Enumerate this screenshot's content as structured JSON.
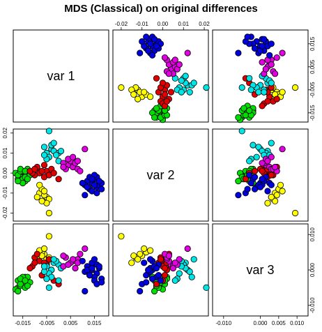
{
  "chart_data": {
    "type": "scatter",
    "subtype": "scatterplot-matrix",
    "title": "MDS (Classical) on original differences",
    "variables": [
      "var 1",
      "var 2",
      "var 3"
    ],
    "ranges": {
      "var1": [
        -0.019,
        0.021
      ],
      "var2": [
        -0.024,
        0.022
      ],
      "var3": [
        -0.013,
        0.013
      ]
    },
    "ticks": {
      "var1": {
        "values": [
          -0.015,
          -0.005,
          0.005,
          0.015
        ],
        "labels": [
          "-0.015",
          "-0.005",
          "0.005",
          "0.015"
        ],
        "side": "bottom"
      },
      "var2_top": {
        "values": [
          -0.02,
          -0.01,
          0.0,
          0.01,
          0.02
        ],
        "labels": [
          "-0.02",
          "-0.01",
          "0.00",
          "0.01",
          "0.02"
        ],
        "side": "top"
      },
      "var2_left": {
        "values": [
          -0.02,
          -0.01,
          0.0,
          0.01,
          0.02
        ],
        "labels": [
          "-0.02",
          "-0.01",
          "0.00",
          "0.01",
          "0.02"
        ],
        "side": "left"
      },
      "var3_right": {
        "values": [
          -0.015,
          -0.005,
          0.005,
          0.015
        ],
        "labels": [
          "-0.015",
          "-0.005",
          "0.005",
          "0.015"
        ],
        "side": "right"
      },
      "var3_bottom": {
        "values": [
          -0.01,
          0.0,
          0.005,
          0.01
        ],
        "labels": [
          "-0.010",
          "0.000",
          "0.005",
          "0.010"
        ],
        "side": "bottom"
      },
      "var3_right_low": {
        "values": [
          -0.01,
          0.0,
          0.01
        ],
        "labels": [
          "-0.010",
          "0.000",
          "0.010"
        ],
        "side": "right"
      }
    },
    "grid": false,
    "legend": "none",
    "marker": {
      "shape": "circle",
      "stroke": "#000000"
    },
    "groups": [
      {
        "color": "#ffff00",
        "points": [
          [
            -0.008,
            -0.01,
            0.004
          ],
          [
            -0.005,
            -0.012,
            0.003
          ],
          [
            -0.006,
            -0.011,
            0.0045
          ],
          [
            -0.007,
            -0.008,
            0.005
          ],
          [
            -0.004,
            -0.013,
            0.0035
          ],
          [
            -0.008,
            -0.006,
            0.0055
          ],
          [
            -0.006,
            -0.009,
            0.006
          ],
          [
            -0.005,
            -0.015,
            0.002
          ],
          [
            -0.007,
            -0.014,
            0.004
          ],
          [
            -0.009,
            -0.012,
            0.003
          ],
          [
            -0.004,
            -0.02,
            0.0095
          ]
        ]
      },
      {
        "color": "#00e000",
        "points": [
          [
            -0.015,
            -0.002,
            -0.003
          ],
          [
            -0.016,
            -0.001,
            -0.004
          ],
          [
            -0.014,
            0.0,
            -0.002
          ],
          [
            -0.017,
            -0.003,
            -0.005
          ],
          [
            -0.013,
            -0.001,
            -0.004
          ],
          [
            -0.015,
            0.001,
            -0.0025
          ],
          [
            -0.016,
            -0.002,
            -0.0045
          ],
          [
            -0.014,
            -0.004,
            -0.003
          ],
          [
            -0.018,
            0.0,
            -0.0055
          ],
          [
            -0.015,
            -0.003,
            -0.0035
          ],
          [
            -0.013,
            0.002,
            -0.002
          ],
          [
            -0.017,
            -0.001,
            -0.003
          ],
          [
            -0.016,
            0.001,
            -0.004
          ],
          [
            -0.014,
            -0.002,
            -0.005
          ],
          [
            -0.012,
            -0.001,
            -0.0035
          ],
          [
            -0.015,
            -0.005,
            -0.002
          ],
          [
            -0.017,
            -0.004,
            -0.006
          ],
          [
            -0.013,
            -0.003,
            -0.0045
          ],
          [
            -0.016,
            0.002,
            -0.0025
          ],
          [
            -0.014,
            0.001,
            -0.003
          ]
        ]
      },
      {
        "color": "#e00000",
        "points": [
          [
            -0.008,
            0.0,
            0.0025
          ],
          [
            -0.005,
            0.001,
            0.0015
          ],
          [
            -0.01,
            -0.001,
            0.0035
          ],
          [
            -0.003,
            0.002,
            0.0
          ],
          [
            -0.011,
            0.0,
            0.001
          ],
          [
            -0.006,
            -0.002,
            0.002
          ],
          [
            -0.009,
            0.003,
            0.0045
          ],
          [
            -0.004,
            -0.001,
            0.003
          ],
          [
            -0.012,
            0.001,
            0.0005
          ],
          [
            -0.007,
            0.001,
            -0.0015
          ],
          [
            -0.002,
            0.0,
            -0.003
          ],
          [
            -0.01,
            0.002,
            0.002
          ],
          [
            -0.006,
            0.004,
            0.001
          ],
          [
            0.0,
            -0.003,
            -0.004
          ]
        ]
      },
      {
        "color": "#00e5e5",
        "points": [
          [
            -0.005,
            0.01,
            0.001
          ],
          [
            -0.003,
            0.012,
            0.0
          ],
          [
            -0.002,
            0.011,
            0.002
          ],
          [
            -0.004,
            0.008,
            -0.001
          ],
          [
            0.0,
            0.01,
            0.0015
          ],
          [
            -0.006,
            0.013,
            -0.0005
          ],
          [
            -0.001,
            0.009,
            0.0025
          ],
          [
            -0.003,
            0.014,
            -0.002
          ],
          [
            0.001,
            0.011,
            0.0005
          ],
          [
            -0.005,
            0.007,
            -0.0025
          ],
          [
            -0.002,
            0.015,
            0.003
          ],
          [
            -0.004,
            0.021,
            -0.005
          ],
          [
            0.0,
            0.006,
            -0.003
          ],
          [
            -0.006,
            0.009,
            0.001
          ]
        ]
      },
      {
        "color": "#e000e0",
        "points": [
          [
            0.004,
            0.004,
            0.0015
          ],
          [
            0.006,
            0.003,
            0.0025
          ],
          [
            0.002,
            0.005,
            0.001
          ],
          [
            0.008,
            0.002,
            0.003
          ],
          [
            0.005,
            0.006,
            0.002
          ],
          [
            0.003,
            0.002,
            0.0035
          ],
          [
            0.007,
            0.005,
            0.0005
          ],
          [
            0.009,
            0.001,
            0.0045
          ],
          [
            0.004,
            0.007,
            0.0015
          ],
          [
            0.006,
            0.008,
            0.003
          ],
          [
            0.002,
            0.003,
            0.004
          ],
          [
            0.008,
            0.006,
            0.002
          ],
          [
            0.011,
            0.012,
            0.006
          ]
        ]
      },
      {
        "color": "#0000e0",
        "points": [
          [
            0.014,
            -0.005,
            0.0
          ],
          [
            0.016,
            -0.007,
            -0.001
          ],
          [
            0.012,
            -0.004,
            0.001
          ],
          [
            0.015,
            -0.003,
            -0.002
          ],
          [
            0.017,
            -0.006,
            0.0005
          ],
          [
            0.013,
            -0.008,
            -0.0015
          ],
          [
            0.016,
            -0.002,
            0.0015
          ],
          [
            0.011,
            -0.006,
            -0.0005
          ],
          [
            0.018,
            -0.005,
            -0.0025
          ],
          [
            0.014,
            -0.009,
            0.002
          ],
          [
            0.015,
            -0.001,
            -0.003
          ],
          [
            0.012,
            -0.007,
            0.0
          ],
          [
            0.017,
            -0.004,
            0.001
          ],
          [
            0.013,
            -0.002,
            -0.0015
          ],
          [
            0.016,
            -0.01,
            -0.004
          ],
          [
            0.01,
            -0.005,
            0.0025
          ],
          [
            0.014,
            -0.003,
            0.0005
          ],
          [
            0.018,
            -0.008,
            -0.0035
          ],
          [
            0.015,
            -0.006,
            0.003
          ],
          [
            0.011,
            -0.011,
            -0.006
          ]
        ]
      }
    ]
  }
}
